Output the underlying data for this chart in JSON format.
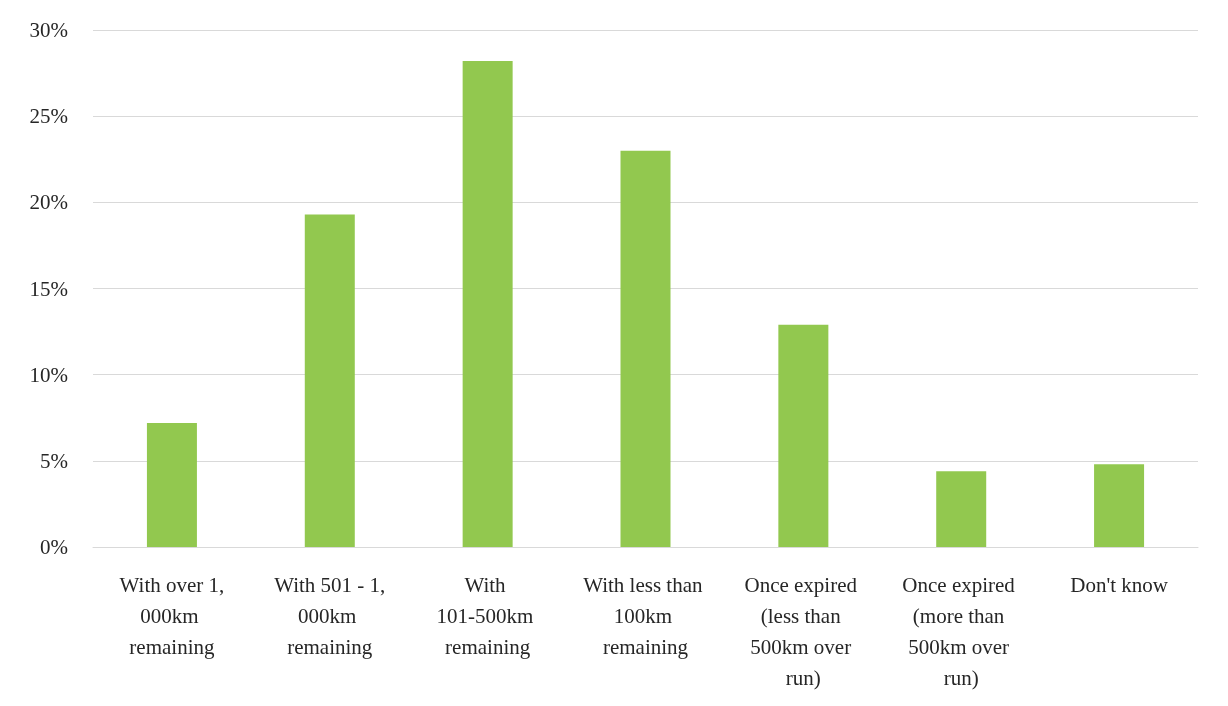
{
  "chart_data": {
    "type": "bar",
    "categories": [
      "With over 1,000km remaining",
      "With 501 - 1,000km remaining",
      "With 101-500km remaining",
      "With less than 100km remaining",
      "Once expired (less than 500km over run)",
      "Once expired (more than 500km over run)",
      "Don't know"
    ],
    "values": [
      7.2,
      19.3,
      28.2,
      23.0,
      12.9,
      4.4,
      4.8
    ],
    "color": "#92c84f",
    "ylim": [
      0,
      30
    ],
    "yticks": [
      {
        "value": 0,
        "label": "0%"
      },
      {
        "value": 5,
        "label": "5%"
      },
      {
        "value": 10,
        "label": "10%"
      },
      {
        "value": 15,
        "label": "15%"
      },
      {
        "value": 20,
        "label": "20%"
      },
      {
        "value": 25,
        "label": "25%"
      },
      {
        "value": 30,
        "label": "30%"
      }
    ],
    "grid": "y"
  }
}
